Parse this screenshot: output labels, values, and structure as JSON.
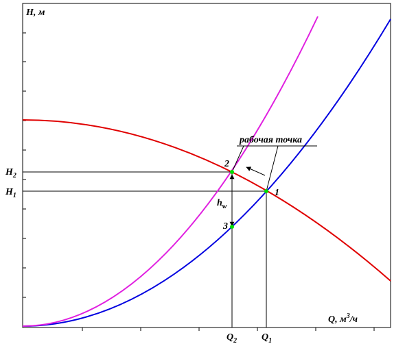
{
  "axes": {
    "y_label": "H, м",
    "x_label": {
      "base": "Q, м",
      "sup": "3",
      "tail": "/ч"
    }
  },
  "levels": {
    "h2": {
      "base": "H",
      "sub": "2"
    },
    "h1": {
      "base": "H",
      "sub": "1"
    }
  },
  "flows": {
    "q2": {
      "base": "Q",
      "sub": "2"
    },
    "q1": {
      "base": "Q",
      "sub": "1"
    }
  },
  "points": [
    "1",
    "2",
    "3"
  ],
  "loss": {
    "base": "h",
    "sub": "w"
  },
  "annotation": "рабочая точка"
}
